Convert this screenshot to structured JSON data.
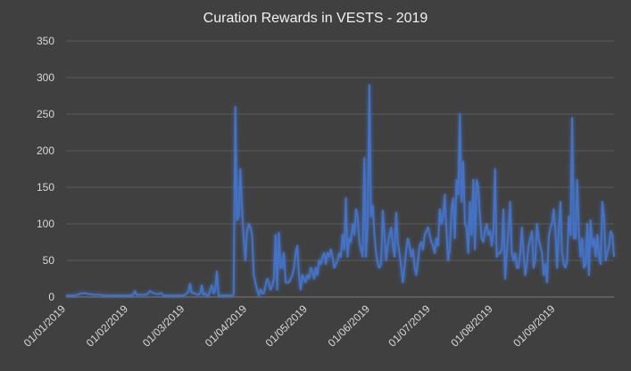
{
  "chart_data": {
    "type": "line",
    "title": "Curation Rewards in VESTS - 2019",
    "xlabel": "",
    "ylabel": "",
    "ylim": [
      0,
      350
    ],
    "yticks": [
      0,
      50,
      100,
      150,
      200,
      250,
      300,
      350
    ],
    "grid": true,
    "legend": "none",
    "x_range": [
      "2019-01-01",
      "2019-09-30"
    ],
    "x_tick_labels": [
      "01/01/2019",
      "01/02/2019",
      "01/03/2019",
      "01/04/2019",
      "01/05/2019",
      "01/06/2019",
      "01/07/2019",
      "01/08/2019",
      "01/09/2019"
    ],
    "line_color": "#4472c4",
    "series": [
      {
        "values": [
          2,
          2,
          2,
          2,
          2,
          2,
          3,
          3,
          4,
          5,
          5,
          5,
          5,
          4,
          4,
          4,
          3,
          3,
          3,
          3,
          3,
          3,
          2,
          2,
          2,
          2,
          2,
          2,
          2,
          2,
          2,
          2,
          2,
          2,
          2,
          2,
          2,
          2,
          2,
          2,
          3,
          8,
          3,
          3,
          3,
          3,
          3,
          3,
          3,
          5,
          8,
          7,
          5,
          5,
          4,
          4,
          5,
          5,
          2,
          2,
          2,
          2,
          2,
          2,
          2,
          2,
          2,
          2,
          2,
          2,
          2,
          3,
          5,
          7,
          18,
          6,
          5,
          5,
          3,
          3,
          5,
          16,
          3,
          5,
          2,
          2,
          10,
          16,
          5,
          10,
          35,
          2,
          2,
          2,
          2,
          2,
          2,
          2,
          2,
          2,
          3,
          260,
          105,
          110,
          175,
          120,
          80,
          50,
          90,
          100,
          95,
          85,
          30,
          20,
          10,
          2,
          10,
          5,
          5,
          15,
          25,
          20,
          10,
          15,
          25,
          85,
          10,
          88,
          40,
          40,
          60,
          20,
          20,
          20,
          25,
          30,
          40,
          60,
          70,
          30,
          10,
          30,
          25,
          20,
          30,
          25,
          40,
          35,
          25,
          40,
          30,
          50,
          45,
          55,
          60,
          45,
          60,
          55,
          65,
          55,
          40,
          45,
          50,
          60,
          55,
          85,
          65,
          135,
          55,
          80,
          75,
          100,
          85,
          120,
          110,
          75,
          65,
          55,
          190,
          55,
          100,
          290,
          110,
          125,
          85,
          60,
          45,
          40,
          45,
          118,
          85,
          50,
          70,
          85,
          95,
          70,
          55,
          115,
          75,
          60,
          40,
          20,
          40,
          65,
          80,
          70,
          55,
          65,
          40,
          30,
          50,
          70,
          75,
          65,
          85,
          90,
          95,
          85,
          75,
          70,
          60,
          80,
          70,
          120,
          100,
          110,
          140,
          90,
          50,
          65,
          120,
          135,
          80,
          160,
          140,
          250,
          130,
          185,
          100,
          95,
          60,
          130,
          85,
          160,
          65,
          160,
          150,
          110,
          80,
          75,
          90,
          100,
          85,
          90,
          70,
          90,
          175,
          55,
          60,
          60,
          65,
          120,
          25,
          60,
          90,
          130,
          60,
          50,
          60,
          40,
          40,
          60,
          95,
          60,
          30,
          45,
          70,
          80,
          90,
          40,
          50,
          100,
          80,
          70,
          60,
          30,
          45,
          20,
          80,
          95,
          100,
          120,
          90,
          40,
          90,
          130,
          60,
          45,
          40,
          50,
          110,
          85,
          245,
          80,
          80,
          160,
          90,
          55,
          80,
          40,
          45,
          100,
          30,
          105,
          70,
          80,
          55,
          85,
          55,
          45,
          130,
          110,
          50,
          60,
          70,
          90,
          85,
          55
        ]
      }
    ]
  }
}
